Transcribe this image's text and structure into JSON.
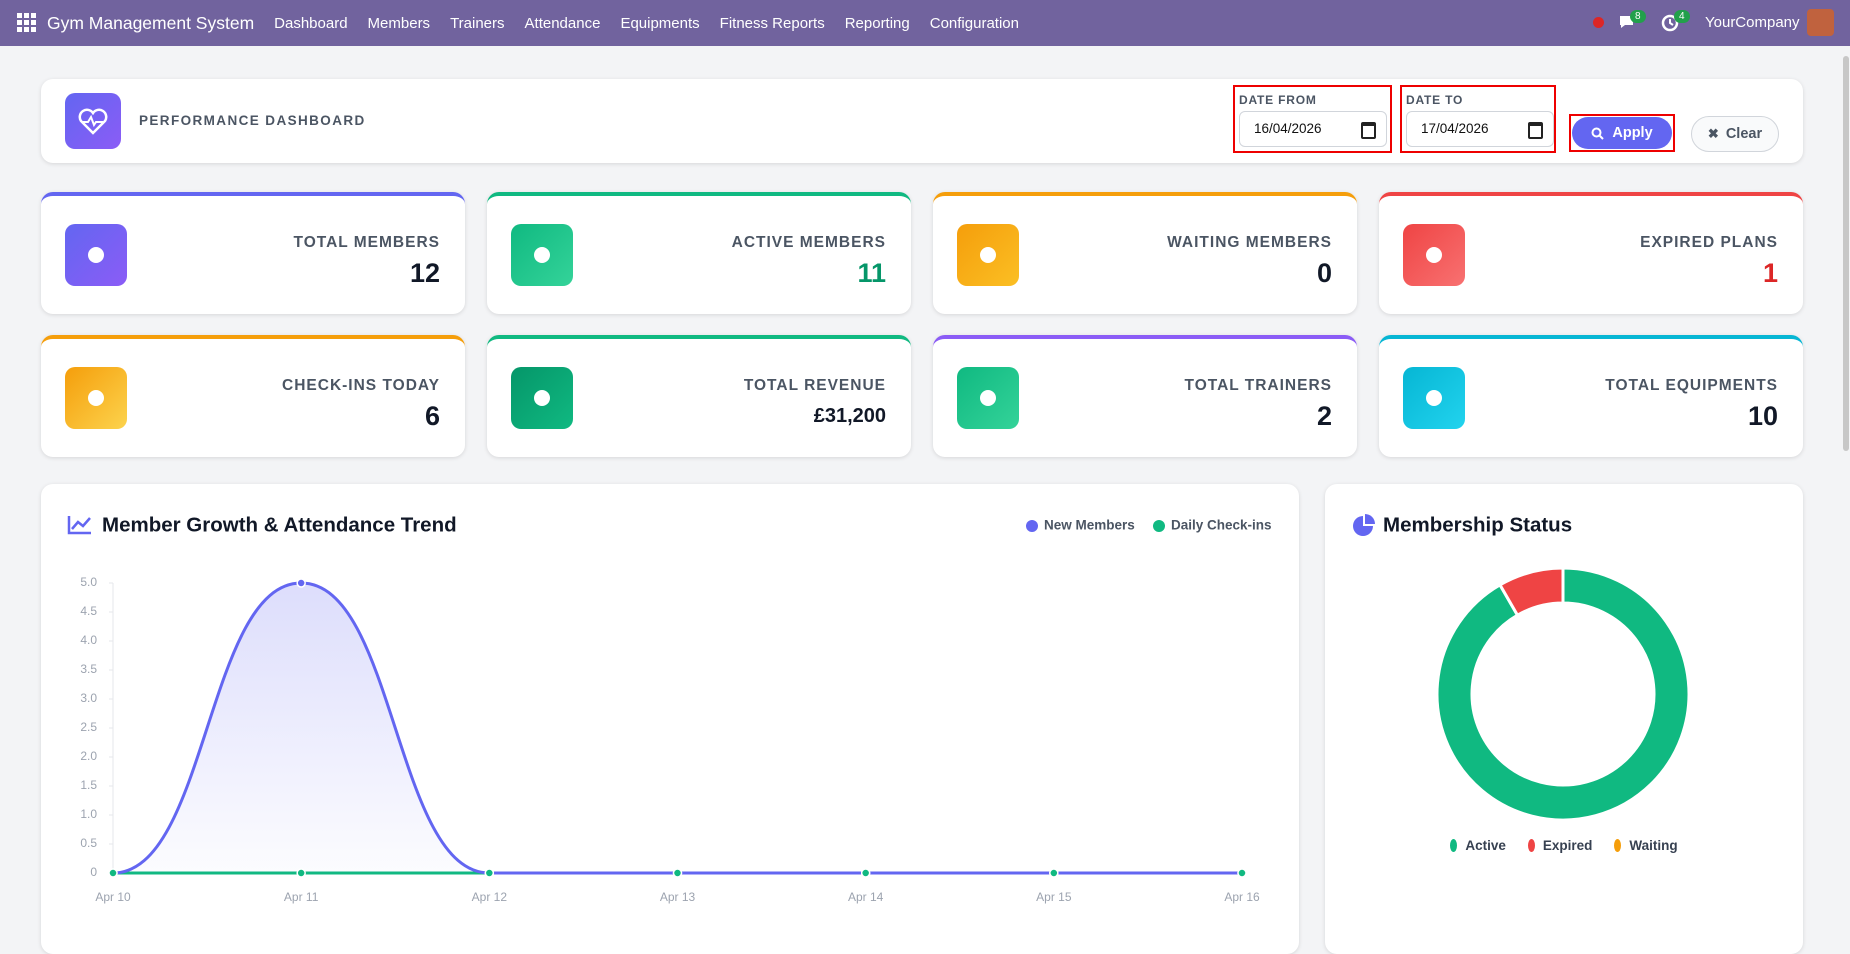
{
  "navbar": {
    "app_title": "Gym Management System",
    "menu": [
      "Dashboard",
      "Members",
      "Trainers",
      "Attendance",
      "Equipments",
      "Fitness Reports",
      "Reporting",
      "Configuration"
    ],
    "messages_badge": 8,
    "activities_badge": 4,
    "company": "YourCompany"
  },
  "header": {
    "title": "PERFORMANCE DASHBOARD",
    "date_from_label": "DATE FROM",
    "date_from": "16/04/2026",
    "date_to_label": "DATE TO",
    "date_to": "17/04/2026",
    "apply": "Apply",
    "clear": "Clear"
  },
  "cards": [
    {
      "label": "TOTAL MEMBERS",
      "value": 12,
      "color": "#6366f1",
      "icon_colors": [
        "#6366f1",
        "#8b5cf6"
      ],
      "value_color": "#111827"
    },
    {
      "label": "ACTIVE MEMBERS",
      "value": 11,
      "color": "#10b981",
      "icon_colors": [
        "#10b981",
        "#34d399"
      ],
      "value_color": "#059669"
    },
    {
      "label": "WAITING MEMBERS",
      "value": 0,
      "color": "#f59e0b",
      "icon_colors": [
        "#f59e0b",
        "#fbbf24"
      ],
      "value_color": "#111827"
    },
    {
      "label": "EXPIRED PLANS",
      "value": 1,
      "color": "#ef4444",
      "icon_colors": [
        "#ef4444",
        "#f87171"
      ],
      "value_color": "#dc2626"
    },
    {
      "label": "CHECK-INS TODAY",
      "value": 6,
      "color": "#f59e0b",
      "icon_colors": [
        "#f59e0b",
        "#fcd34d"
      ],
      "value_color": "#111827"
    },
    {
      "label": "TOTAL REVENUE",
      "value": "£31,200",
      "color": "#10b981",
      "icon_colors": [
        "#059669",
        "#10b981"
      ],
      "value_color": "#111827"
    },
    {
      "label": "TOTAL TRAINERS",
      "value": 2,
      "color": "#8b5cf6",
      "icon_colors": [
        "#10b981",
        "#34d399"
      ],
      "value_color": "#111827"
    },
    {
      "label": "TOTAL EQUIPMENTS",
      "value": 10,
      "color": "#06b6d4",
      "icon_colors": [
        "#06b6d4",
        "#22d3ee"
      ],
      "value_color": "#111827"
    }
  ],
  "chart_data": [
    {
      "type": "line",
      "title": "Member Growth & Attendance Trend",
      "categories": [
        "Apr 10",
        "Apr 11",
        "Apr 12",
        "Apr 13",
        "Apr 14",
        "Apr 15",
        "Apr 16"
      ],
      "series": [
        {
          "name": "New Members",
          "color": "#6366f1",
          "values": [
            0,
            5,
            0,
            0,
            0,
            0,
            0
          ]
        },
        {
          "name": "Daily Check-ins",
          "color": "#10b981",
          "values": [
            0,
            0,
            0,
            0,
            0,
            0,
            0
          ]
        }
      ],
      "ylim": [
        0,
        5
      ],
      "yticks": [
        0,
        0.5,
        {
          "value": 1,
          "label": "1.0"
        },
        1.5,
        {
          "value": 2,
          "label": "2.0"
        },
        2.5,
        {
          "value": 3,
          "label": "3.0"
        },
        3.5,
        {
          "value": 4,
          "label": "4.0"
        },
        4.5,
        {
          "value": 5,
          "label": "5.0"
        }
      ]
    },
    {
      "type": "pie",
      "title": "Membership Status",
      "categories": [
        "Active",
        "Expired",
        "Waiting"
      ],
      "values": [
        11,
        1,
        0
      ],
      "colors": [
        "#10b981",
        "#ef4444",
        "#f59e0b"
      ]
    }
  ]
}
